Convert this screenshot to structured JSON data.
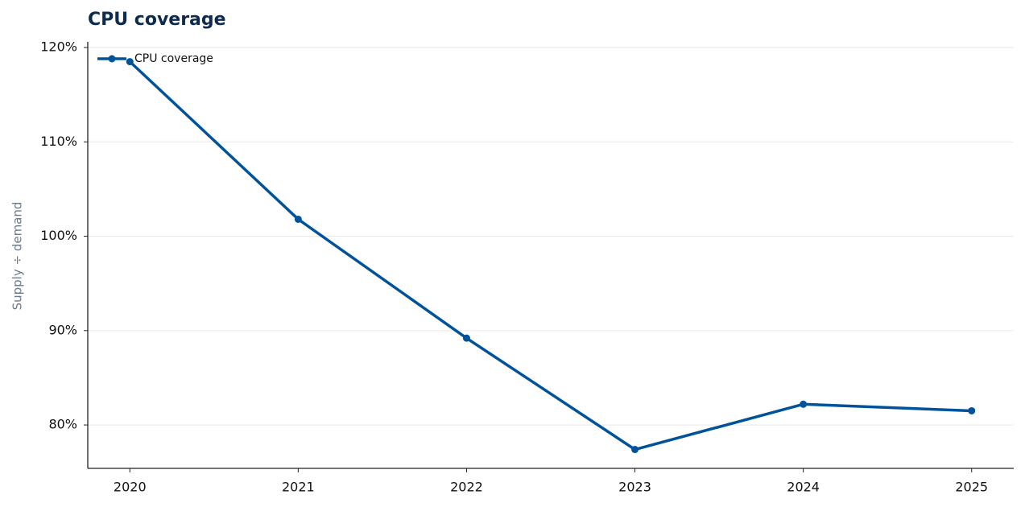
{
  "chart_data": {
    "type": "line",
    "title": "CPU coverage",
    "y_label": "Supply ÷ demand",
    "x": [
      2020,
      2021,
      2022,
      2023,
      2024,
      2025
    ],
    "xlim": [
      2019.75,
      2025.25
    ],
    "xticks": [
      2020,
      2021,
      2022,
      2023,
      2024,
      2025
    ],
    "ylim": [
      75.4,
      120.6
    ],
    "yticks": [
      {
        "value": 80,
        "label": "80%"
      },
      {
        "value": 90,
        "label": "90%"
      },
      {
        "value": 100,
        "label": "100%"
      },
      {
        "value": 110,
        "label": "110%"
      },
      {
        "value": 120,
        "label": "120%"
      }
    ],
    "grid": true,
    "legend": "upper-left",
    "series": [
      {
        "name": "CPU coverage",
        "color": "#00529b",
        "values": [
          118.5,
          101.8,
          89.2,
          77.4,
          82.2,
          81.5
        ]
      }
    ]
  }
}
